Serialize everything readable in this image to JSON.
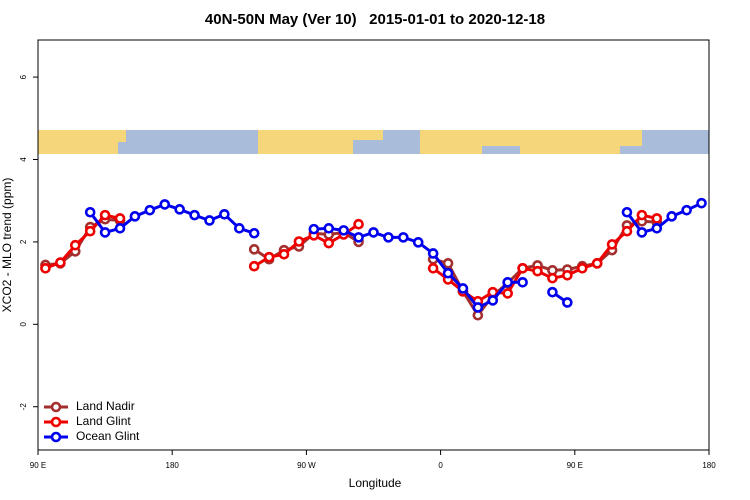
{
  "chart_data": {
    "type": "line",
    "title": "40N-50N May (Ver 10)   2015-01-01 to 2020-12-18",
    "xlabel": "Longitude",
    "ylabel": "XCO2 - MLO trend (ppm)",
    "x": [
      95,
      105,
      115,
      125,
      135,
      145,
      155,
      165,
      175,
      185,
      195,
      205,
      215,
      225,
      235,
      245,
      255,
      265,
      275,
      285,
      295,
      305,
      315,
      325,
      335,
      345,
      355,
      365,
      375,
      385,
      395,
      405,
      415,
      425,
      435,
      445,
      455,
      465,
      475,
      485,
      495,
      505,
      515,
      525,
      535
    ],
    "series": [
      {
        "name": "Land Nadir",
        "color": "#a3302e",
        "values": [
          1.44,
          1.48,
          1.77,
          2.36,
          2.55,
          2.52,
          null,
          null,
          null,
          null,
          null,
          null,
          null,
          null,
          1.82,
          1.58,
          1.8,
          1.89,
          2.21,
          2.18,
          2.23,
          2.0,
          null,
          null,
          null,
          null,
          1.58,
          1.48,
          0.8,
          0.22,
          0.7,
          1.0,
          1.36,
          1.43,
          1.31,
          1.33,
          1.41,
          1.48,
          1.8,
          2.4,
          2.5,
          2.48,
          null,
          null,
          null
        ]
      },
      {
        "name": "Land Glint",
        "color": "#ee0000",
        "values": [
          1.36,
          1.5,
          1.92,
          2.26,
          2.65,
          2.57,
          null,
          null,
          null,
          null,
          null,
          null,
          null,
          null,
          1.41,
          1.63,
          1.7,
          2.01,
          2.16,
          1.97,
          2.18,
          2.43,
          null,
          null,
          null,
          null,
          1.36,
          1.09,
          0.8,
          0.56,
          0.78,
          0.75,
          1.36,
          1.29,
          1.12,
          1.19,
          1.36,
          1.48,
          1.94,
          2.26,
          2.65,
          2.57,
          null,
          null,
          null
        ]
      },
      {
        "name": "Ocean Glint",
        "color": "#0000ee",
        "values": [
          null,
          null,
          null,
          2.72,
          2.23,
          2.33,
          2.62,
          2.77,
          2.91,
          2.79,
          2.65,
          2.52,
          2.67,
          2.33,
          2.21,
          null,
          null,
          null,
          2.31,
          2.33,
          2.28,
          2.11,
          2.23,
          2.11,
          2.11,
          1.99,
          1.72,
          1.24,
          0.87,
          0.41,
          0.58,
          1.02,
          1.02,
          null,
          0.78,
          0.53,
          null,
          null,
          null,
          2.72,
          2.23,
          2.33,
          2.62,
          2.77,
          2.94
        ]
      }
    ],
    "xlim": [
      90,
      540
    ],
    "xticks": [
      {
        "value": 90,
        "label": "90 E"
      },
      {
        "value": 180,
        "label": "180"
      },
      {
        "value": 270,
        "label": "90 W"
      },
      {
        "value": 360,
        "label": "0"
      },
      {
        "value": 450,
        "label": "90 E"
      },
      {
        "value": 540,
        "label": "180"
      }
    ],
    "ylim": [
      -3.05,
      6.9
    ],
    "yticks": [
      -2,
      0,
      2,
      4,
      6
    ],
    "legend": "bottom-left"
  }
}
